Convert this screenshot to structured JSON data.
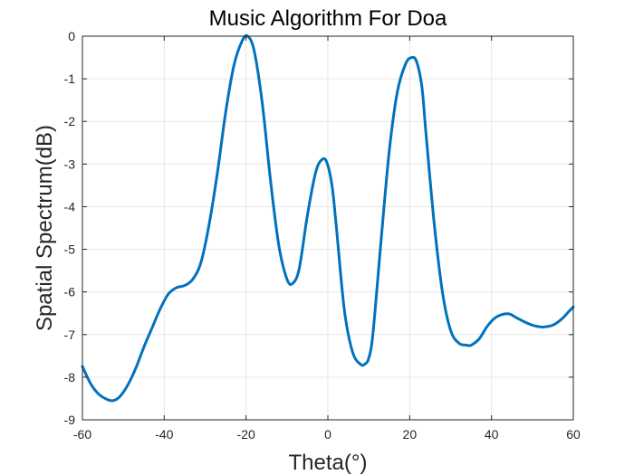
{
  "chart_data": {
    "type": "line",
    "title": "Music Algorithm For Doa",
    "xlabel": "Theta(°)",
    "ylabel": "Spatial Spectrum(dB)",
    "xlim": [
      -60,
      60
    ],
    "ylim": [
      -9,
      0
    ],
    "xticks": [
      "-60",
      "-40",
      "-20",
      "0",
      "20",
      "40",
      "60"
    ],
    "yticks": [
      "0",
      "-1",
      "-2",
      "-3",
      "-4",
      "-5",
      "-6",
      "-7",
      "-8",
      "-9"
    ],
    "grid": true,
    "box": true,
    "line_color": "#0072BD",
    "series": [
      {
        "x": [
          -60,
          -58,
          -56,
          -54,
          -52.6,
          -51,
          -49,
          -47,
          -45,
          -43,
          -41,
          -39,
          -37,
          -35,
          -33,
          -31,
          -29,
          -27,
          -25,
          -23,
          -21,
          -19.6,
          -18,
          -16,
          -14,
          -12,
          -10,
          -8.6,
          -7,
          -5,
          -3,
          -1.5,
          -0.3,
          1,
          2,
          4,
          6,
          8,
          9.2,
          10,
          11,
          13,
          15,
          17,
          19,
          20.5,
          21.7,
          23,
          24,
          26,
          28,
          30,
          32,
          34,
          35,
          37,
          39,
          41,
          43,
          44.5,
          46,
          48,
          50,
          52,
          53,
          55,
          57,
          59,
          60
        ],
        "y": [
          -7.75,
          -8.15,
          -8.4,
          -8.52,
          -8.55,
          -8.47,
          -8.2,
          -7.8,
          -7.3,
          -6.85,
          -6.4,
          -6.05,
          -5.9,
          -5.85,
          -5.7,
          -5.3,
          -4.4,
          -3.2,
          -1.8,
          -0.7,
          -0.12,
          0,
          -0.35,
          -1.6,
          -3.4,
          -4.9,
          -5.7,
          -5.8,
          -5.45,
          -4.2,
          -3.2,
          -2.9,
          -2.95,
          -3.5,
          -4.4,
          -6.4,
          -7.4,
          -7.7,
          -7.68,
          -7.55,
          -7.0,
          -4.8,
          -2.7,
          -1.3,
          -0.65,
          -0.5,
          -0.6,
          -1.2,
          -2.3,
          -4.4,
          -6.0,
          -6.9,
          -7.2,
          -7.25,
          -7.25,
          -7.1,
          -6.8,
          -6.6,
          -6.52,
          -6.52,
          -6.6,
          -6.7,
          -6.78,
          -6.82,
          -6.82,
          -6.78,
          -6.65,
          -6.45,
          -6.35
        ]
      }
    ]
  }
}
